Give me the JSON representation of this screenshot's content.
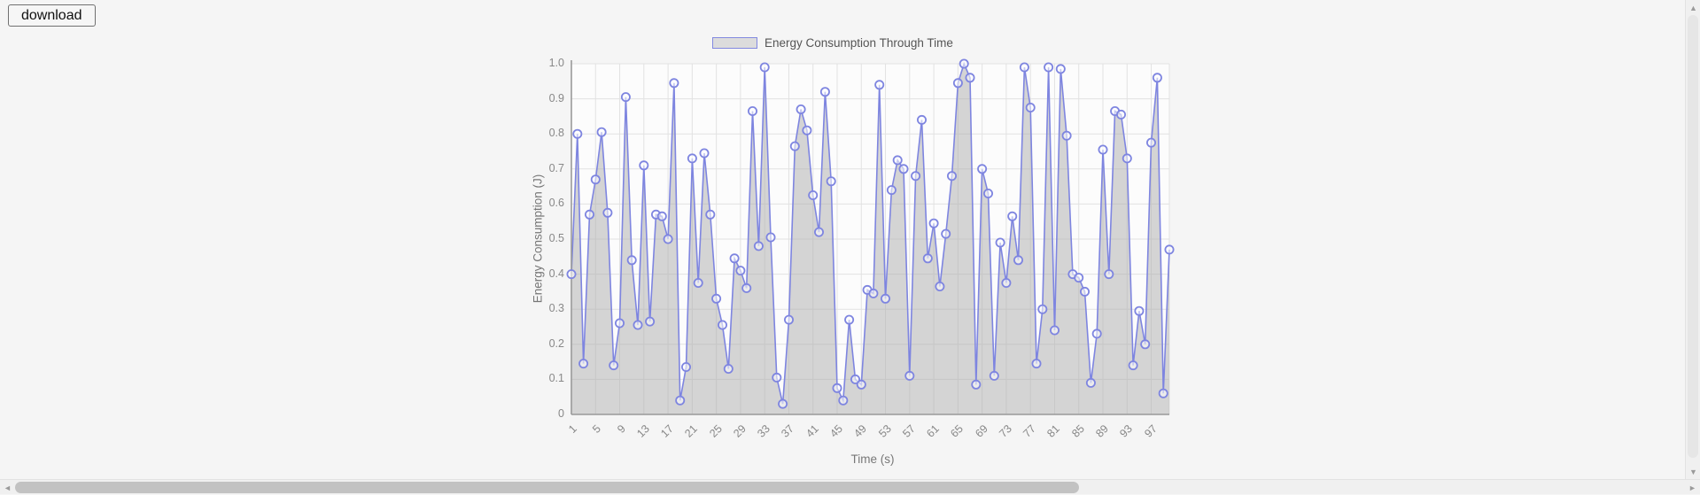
{
  "toolbar": {
    "download_label": "download"
  },
  "chart": {
    "title": "Energy Consumption Through Time",
    "xlabel": "Time (s)",
    "ylabel": "Energy Consumption (J)",
    "colors": {
      "line": "#7e85e0",
      "marker_stroke": "#7e85e0",
      "area_fill": "#d5d5d5",
      "legend_fill": "#dcdcdc",
      "grid": "#e2e2e2",
      "axis": "#9a9a9a"
    }
  },
  "chart_data": {
    "type": "area",
    "title": "Energy Consumption Through Time",
    "xlabel": "Time (s)",
    "ylabel": "Energy Consumption (J)",
    "x_range": [
      1,
      100
    ],
    "ylim": [
      0,
      1
    ],
    "grid": true,
    "legend_position": "top-center",
    "x_ticks": [
      1,
      5,
      9,
      13,
      17,
      21,
      25,
      29,
      33,
      37,
      41,
      45,
      49,
      53,
      57,
      61,
      65,
      69,
      73,
      77,
      81,
      85,
      89,
      93,
      97
    ],
    "y_ticks": [
      "1.0",
      "0.9",
      "0.8",
      "0.7",
      "0.6",
      "0.5",
      "0.4",
      "0.3",
      "0.2",
      "0.1",
      "0"
    ],
    "values": [
      0.4,
      0.8,
      0.145,
      0.57,
      0.67,
      0.805,
      0.575,
      0.14,
      0.26,
      0.905,
      0.44,
      0.255,
      0.71,
      0.265,
      0.57,
      0.565,
      0.5,
      0.945,
      0.04,
      0.135,
      0.73,
      0.375,
      0.745,
      0.57,
      0.33,
      0.255,
      0.13,
      0.445,
      0.41,
      0.36,
      0.865,
      0.48,
      0.99,
      0.505,
      0.105,
      0.03,
      0.27,
      0.765,
      0.87,
      0.81,
      0.625,
      0.52,
      0.92,
      0.665,
      0.075,
      0.04,
      0.27,
      0.1,
      0.085,
      0.355,
      0.345,
      0.94,
      0.33,
      0.64,
      0.725,
      0.7,
      0.11,
      0.68,
      0.84,
      0.445,
      0.545,
      0.365,
      0.515,
      0.68,
      0.945,
      1.0,
      0.96,
      0.085,
      0.7,
      0.63,
      0.11,
      0.49,
      0.375,
      0.565,
      0.44,
      0.99,
      0.875,
      0.145,
      0.3,
      0.99,
      0.24,
      0.985,
      0.795,
      0.4,
      0.39,
      0.35,
      0.09,
      0.23,
      0.755,
      0.4,
      0.865,
      0.855,
      0.73,
      0.14,
      0.295,
      0.2,
      0.775,
      0.96,
      0.06,
      0.47
    ]
  },
  "scrollbars": {
    "left_arrow": "◄",
    "right_arrow": "►",
    "up_arrow": "▲",
    "down_arrow": "▼"
  }
}
